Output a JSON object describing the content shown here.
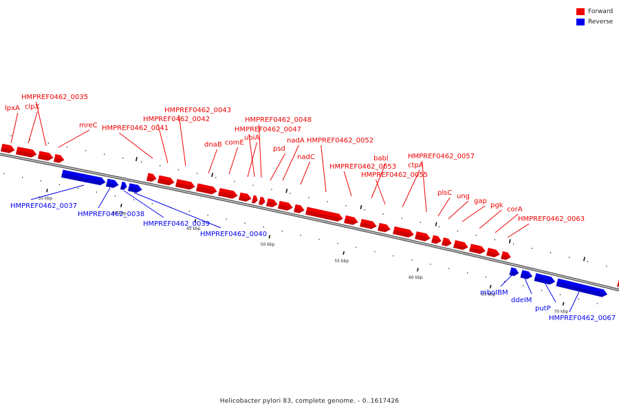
{
  "colors": {
    "forward": "#ee0000",
    "reverse": "#0000ee",
    "backbone": "#777777"
  },
  "legend": [
    {
      "label": "Forward",
      "color": "#ee0000"
    },
    {
      "label": "Reverse",
      "color": "#0000ee"
    }
  ],
  "caption": "Helicobacter pylori 83, complete genome. - 0..1617426",
  "scale_labels": [
    "35 kbp",
    "40 kbp",
    "45 kbp",
    "50 kbp",
    "55 kbp",
    "60 kbp",
    "65 kbp",
    "70 kbp"
  ],
  "forward_genes": [
    "lpxA",
    "clpX",
    "HMPREF0462_0035",
    "mreC",
    "HMPREF0462_0041",
    "HMPREF0462_0042",
    "HMPREF0462_0043",
    "dnaB",
    "comE",
    "ubiA",
    "HMPREF0462_0047",
    "HMPREF0462_0048",
    "psd",
    "nadA",
    "nadC",
    "HMPREF0462_0052",
    "HMPREF0462_0053",
    "babl",
    "HMPREF0462_0055",
    "ctpA",
    "HMPREF0462_0057",
    "plsC",
    "ung",
    "gap",
    "pgk",
    "corA",
    "HMPREF0462_0063"
  ],
  "reverse_genes": [
    "HMPREF0462_0037",
    "HMPREF0462_0038",
    "HMPREF0462_0039",
    "HMPREF0462_0040",
    "mboIBM",
    "ddeIM",
    "putP",
    "HMPREF0462_0067"
  ]
}
